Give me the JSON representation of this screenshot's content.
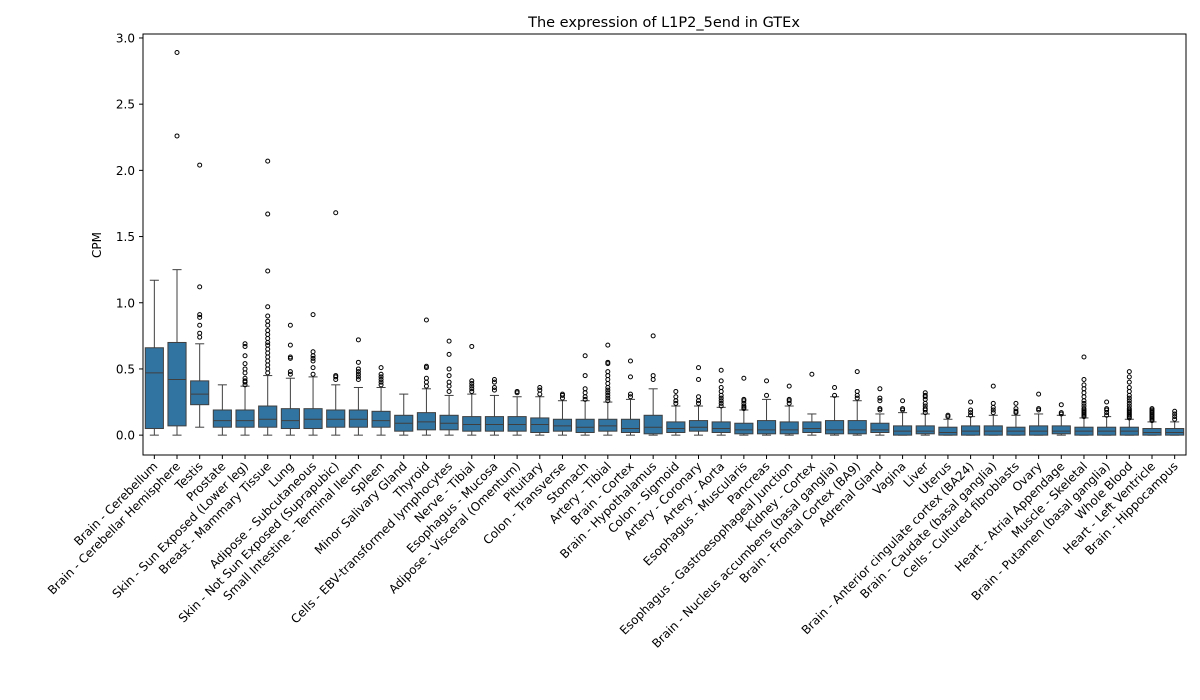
{
  "chart_data": {
    "type": "box",
    "title": "The expression of L1P2_5end in GTEx",
    "xlabel": "",
    "ylabel": "CPM",
    "ylim": [
      -0.15,
      3.03
    ],
    "yticks": [
      "0.0",
      "0.5",
      "1.0",
      "1.5",
      "2.0",
      "2.5",
      "3.0"
    ],
    "grid": false,
    "legend": false,
    "colors": {
      "box": "#3274a1",
      "line": "#3f3f3f"
    },
    "categories": [
      "Brain - Cerebellum",
      "Brain - Cerebellar Hemisphere",
      "Testis",
      "Prostate",
      "Skin - Sun Exposed (Lower leg)",
      "Breast - Mammary Tissue",
      "Lung",
      "Adipose - Subcutaneous",
      "Skin - Not Sun Exposed (Suprapubic)",
      "Small Intestine - Terminal Ileum",
      "Spleen",
      "Minor Salivary Gland",
      "Thyroid",
      "Cells - EBV-transformed lymphocytes",
      "Nerve - Tibial",
      "Esophagus - Mucosa",
      "Adipose - Visceral (Omentum)",
      "Pituitary",
      "Colon - Transverse",
      "Stomach",
      "Artery - Tibial",
      "Brain - Cortex",
      "Brain - Hypothalamus",
      "Colon - Sigmoid",
      "Artery - Coronary",
      "Artery - Aorta",
      "Esophagus - Muscularis",
      "Pancreas",
      "Esophagus - Gastroesophageal Junction",
      "Kidney - Cortex",
      "Brain - Nucleus accumbens (basal ganglia)",
      "Brain - Frontal Cortex (BA9)",
      "Adrenal Gland",
      "Vagina",
      "Liver",
      "Uterus",
      "Brain - Anterior cingulate cortex (BA24)",
      "Brain - Caudate (basal ganglia)",
      "Cells - Cultured fibroblasts",
      "Ovary",
      "Heart - Atrial Appendage",
      "Muscle - Skeletal",
      "Brain - Putamen (basal ganglia)",
      "Whole Blood",
      "Heart - Left Ventricle",
      "Brain - Hippocampus"
    ],
    "boxes": [
      {
        "min": 0.0,
        "q1": 0.05,
        "median": 0.47,
        "q3": 0.66,
        "max": 1.17,
        "outliers": []
      },
      {
        "min": 0.0,
        "q1": 0.07,
        "median": 0.42,
        "q3": 0.7,
        "max": 1.25,
        "outliers": [
          2.26,
          2.89
        ]
      },
      {
        "min": 0.06,
        "q1": 0.23,
        "median": 0.31,
        "q3": 0.41,
        "max": 0.69,
        "outliers": [
          0.74,
          0.77,
          0.83,
          0.89,
          0.91,
          1.12,
          2.04
        ]
      },
      {
        "min": 0.0,
        "q1": 0.06,
        "median": 0.11,
        "q3": 0.19,
        "max": 0.38,
        "outliers": []
      },
      {
        "min": 0.0,
        "q1": 0.06,
        "median": 0.11,
        "q3": 0.19,
        "max": 0.37,
        "outliers": [
          0.38,
          0.4,
          0.41,
          0.43,
          0.47,
          0.5,
          0.54,
          0.6,
          0.67,
          0.69
        ]
      },
      {
        "min": 0.0,
        "q1": 0.06,
        "median": 0.12,
        "q3": 0.22,
        "max": 0.45,
        "outliers": [
          0.47,
          0.5,
          0.53,
          0.56,
          0.59,
          0.62,
          0.65,
          0.68,
          0.7,
          0.73,
          0.76,
          0.79,
          0.83,
          0.86,
          0.9,
          0.97,
          1.24,
          1.67,
          2.07
        ]
      },
      {
        "min": 0.0,
        "q1": 0.05,
        "median": 0.11,
        "q3": 0.2,
        "max": 0.43,
        "outliers": [
          0.46,
          0.48,
          0.58,
          0.59,
          0.68,
          0.83
        ]
      },
      {
        "min": 0.0,
        "q1": 0.05,
        "median": 0.12,
        "q3": 0.2,
        "max": 0.44,
        "outliers": [
          0.46,
          0.51,
          0.56,
          0.58,
          0.6,
          0.63,
          0.91
        ]
      },
      {
        "min": 0.0,
        "q1": 0.06,
        "median": 0.12,
        "q3": 0.19,
        "max": 0.38,
        "outliers": [
          0.42,
          0.44,
          0.45,
          1.68
        ]
      },
      {
        "min": 0.0,
        "q1": 0.06,
        "median": 0.12,
        "q3": 0.19,
        "max": 0.36,
        "outliers": [
          0.42,
          0.44,
          0.46,
          0.48,
          0.5,
          0.55,
          0.72
        ]
      },
      {
        "min": 0.0,
        "q1": 0.06,
        "median": 0.11,
        "q3": 0.18,
        "max": 0.36,
        "outliers": [
          0.38,
          0.4,
          0.42,
          0.44,
          0.46,
          0.51
        ]
      },
      {
        "min": 0.0,
        "q1": 0.03,
        "median": 0.09,
        "q3": 0.15,
        "max": 0.31,
        "outliers": []
      },
      {
        "min": 0.0,
        "q1": 0.04,
        "median": 0.1,
        "q3": 0.17,
        "max": 0.35,
        "outliers": [
          0.37,
          0.4,
          0.43,
          0.51,
          0.52,
          0.87
        ]
      },
      {
        "min": 0.0,
        "q1": 0.04,
        "median": 0.09,
        "q3": 0.15,
        "max": 0.3,
        "outliers": [
          0.33,
          0.37,
          0.4,
          0.45,
          0.5,
          0.61,
          0.71
        ]
      },
      {
        "min": 0.0,
        "q1": 0.03,
        "median": 0.08,
        "q3": 0.14,
        "max": 0.31,
        "outliers": [
          0.33,
          0.35,
          0.37,
          0.39,
          0.41,
          0.67
        ]
      },
      {
        "min": 0.0,
        "q1": 0.03,
        "median": 0.08,
        "q3": 0.14,
        "max": 0.3,
        "outliers": [
          0.34,
          0.36,
          0.4,
          0.42
        ]
      },
      {
        "min": 0.0,
        "q1": 0.03,
        "median": 0.08,
        "q3": 0.14,
        "max": 0.29,
        "outliers": [
          0.32,
          0.33
        ]
      },
      {
        "min": 0.0,
        "q1": 0.02,
        "median": 0.08,
        "q3": 0.13,
        "max": 0.29,
        "outliers": [
          0.31,
          0.34,
          0.36
        ]
      },
      {
        "min": 0.0,
        "q1": 0.03,
        "median": 0.07,
        "q3": 0.12,
        "max": 0.26,
        "outliers": [
          0.28,
          0.3,
          0.31
        ]
      },
      {
        "min": 0.0,
        "q1": 0.02,
        "median": 0.06,
        "q3": 0.12,
        "max": 0.26,
        "outliers": [
          0.27,
          0.29,
          0.32,
          0.35,
          0.45,
          0.6
        ]
      },
      {
        "min": 0.0,
        "q1": 0.03,
        "median": 0.07,
        "q3": 0.12,
        "max": 0.25,
        "outliers": [
          0.26,
          0.28,
          0.3,
          0.32,
          0.34,
          0.36,
          0.39,
          0.42,
          0.45,
          0.48,
          0.54,
          0.55,
          0.68
        ]
      },
      {
        "min": 0.0,
        "q1": 0.02,
        "median": 0.05,
        "q3": 0.12,
        "max": 0.27,
        "outliers": [
          0.29,
          0.31,
          0.44,
          0.56
        ]
      },
      {
        "min": 0.0,
        "q1": 0.01,
        "median": 0.06,
        "q3": 0.15,
        "max": 0.35,
        "outliers": [
          0.42,
          0.45,
          0.75
        ]
      },
      {
        "min": 0.0,
        "q1": 0.02,
        "median": 0.05,
        "q3": 0.1,
        "max": 0.22,
        "outliers": [
          0.24,
          0.26,
          0.29,
          0.33
        ]
      },
      {
        "min": 0.0,
        "q1": 0.03,
        "median": 0.06,
        "q3": 0.11,
        "max": 0.22,
        "outliers": [
          0.24,
          0.26,
          0.29,
          0.42,
          0.51
        ]
      },
      {
        "min": 0.0,
        "q1": 0.02,
        "median": 0.05,
        "q3": 0.1,
        "max": 0.21,
        "outliers": [
          0.22,
          0.24,
          0.26,
          0.28,
          0.3,
          0.33,
          0.36,
          0.41,
          0.49
        ]
      },
      {
        "min": 0.0,
        "q1": 0.01,
        "median": 0.04,
        "q3": 0.09,
        "max": 0.19,
        "outliers": [
          0.2,
          0.21,
          0.22,
          0.24,
          0.26,
          0.27,
          0.43
        ]
      },
      {
        "min": 0.0,
        "q1": 0.01,
        "median": 0.04,
        "q3": 0.11,
        "max": 0.27,
        "outliers": [
          0.3,
          0.41
        ]
      },
      {
        "min": 0.0,
        "q1": 0.01,
        "median": 0.04,
        "q3": 0.1,
        "max": 0.22,
        "outliers": [
          0.24,
          0.26,
          0.27,
          0.37
        ]
      },
      {
        "min": 0.0,
        "q1": 0.02,
        "median": 0.05,
        "q3": 0.1,
        "max": 0.16,
        "outliers": [
          0.46
        ]
      },
      {
        "min": 0.0,
        "q1": 0.01,
        "median": 0.04,
        "q3": 0.11,
        "max": 0.29,
        "outliers": [
          0.3,
          0.36
        ]
      },
      {
        "min": 0.0,
        "q1": 0.01,
        "median": 0.04,
        "q3": 0.11,
        "max": 0.26,
        "outliers": [
          0.28,
          0.3,
          0.33,
          0.48
        ]
      },
      {
        "min": 0.0,
        "q1": 0.02,
        "median": 0.04,
        "q3": 0.09,
        "max": 0.16,
        "outliers": [
          0.19,
          0.2,
          0.26,
          0.28,
          0.35
        ]
      },
      {
        "min": 0.0,
        "q1": 0.0,
        "median": 0.03,
        "q3": 0.07,
        "max": 0.17,
        "outliers": [
          0.19,
          0.2,
          0.26
        ]
      },
      {
        "min": 0.0,
        "q1": 0.01,
        "median": 0.03,
        "q3": 0.07,
        "max": 0.16,
        "outliers": [
          0.17,
          0.19,
          0.2,
          0.22,
          0.24,
          0.27,
          0.29,
          0.3,
          0.32
        ]
      },
      {
        "min": 0.0,
        "q1": 0.0,
        "median": 0.02,
        "q3": 0.06,
        "max": 0.12,
        "outliers": [
          0.14,
          0.15
        ]
      },
      {
        "min": 0.0,
        "q1": 0.0,
        "median": 0.03,
        "q3": 0.07,
        "max": 0.14,
        "outliers": [
          0.15,
          0.17,
          0.19,
          0.25
        ]
      },
      {
        "min": 0.0,
        "q1": 0.0,
        "median": 0.03,
        "q3": 0.07,
        "max": 0.15,
        "outliers": [
          0.17,
          0.19,
          0.21,
          0.24,
          0.37
        ]
      },
      {
        "min": 0.0,
        "q1": 0.0,
        "median": 0.03,
        "q3": 0.06,
        "max": 0.15,
        "outliers": [
          0.17,
          0.18,
          0.2,
          0.24
        ]
      },
      {
        "min": 0.0,
        "q1": 0.0,
        "median": 0.03,
        "q3": 0.07,
        "max": 0.16,
        "outliers": [
          0.19,
          0.2,
          0.31
        ]
      },
      {
        "min": 0.0,
        "q1": 0.01,
        "median": 0.03,
        "q3": 0.07,
        "max": 0.15,
        "outliers": [
          0.16,
          0.17,
          0.23
        ]
      },
      {
        "min": 0.0,
        "q1": 0.0,
        "median": 0.03,
        "q3": 0.06,
        "max": 0.13,
        "outliers": [
          0.14,
          0.15,
          0.16,
          0.17,
          0.18,
          0.19,
          0.2,
          0.22,
          0.24,
          0.26,
          0.29,
          0.32,
          0.35,
          0.38,
          0.42,
          0.59
        ]
      },
      {
        "min": 0.0,
        "q1": 0.0,
        "median": 0.03,
        "q3": 0.06,
        "max": 0.14,
        "outliers": [
          0.15,
          0.17,
          0.19,
          0.2,
          0.25
        ]
      },
      {
        "min": 0.0,
        "q1": 0.0,
        "median": 0.03,
        "q3": 0.06,
        "max": 0.12,
        "outliers": [
          0.13,
          0.14,
          0.15,
          0.16,
          0.17,
          0.18,
          0.19,
          0.2,
          0.22,
          0.24,
          0.26,
          0.28,
          0.3,
          0.33,
          0.36,
          0.4,
          0.44,
          0.48
        ]
      },
      {
        "min": 0.0,
        "q1": 0.0,
        "median": 0.02,
        "q3": 0.05,
        "max": 0.1,
        "outliers": [
          0.11,
          0.12,
          0.13,
          0.14,
          0.15,
          0.16,
          0.17,
          0.18,
          0.19,
          0.2
        ]
      },
      {
        "min": 0.0,
        "q1": 0.0,
        "median": 0.02,
        "q3": 0.05,
        "max": 0.1,
        "outliers": [
          0.12,
          0.14,
          0.16,
          0.18
        ]
      }
    ]
  }
}
